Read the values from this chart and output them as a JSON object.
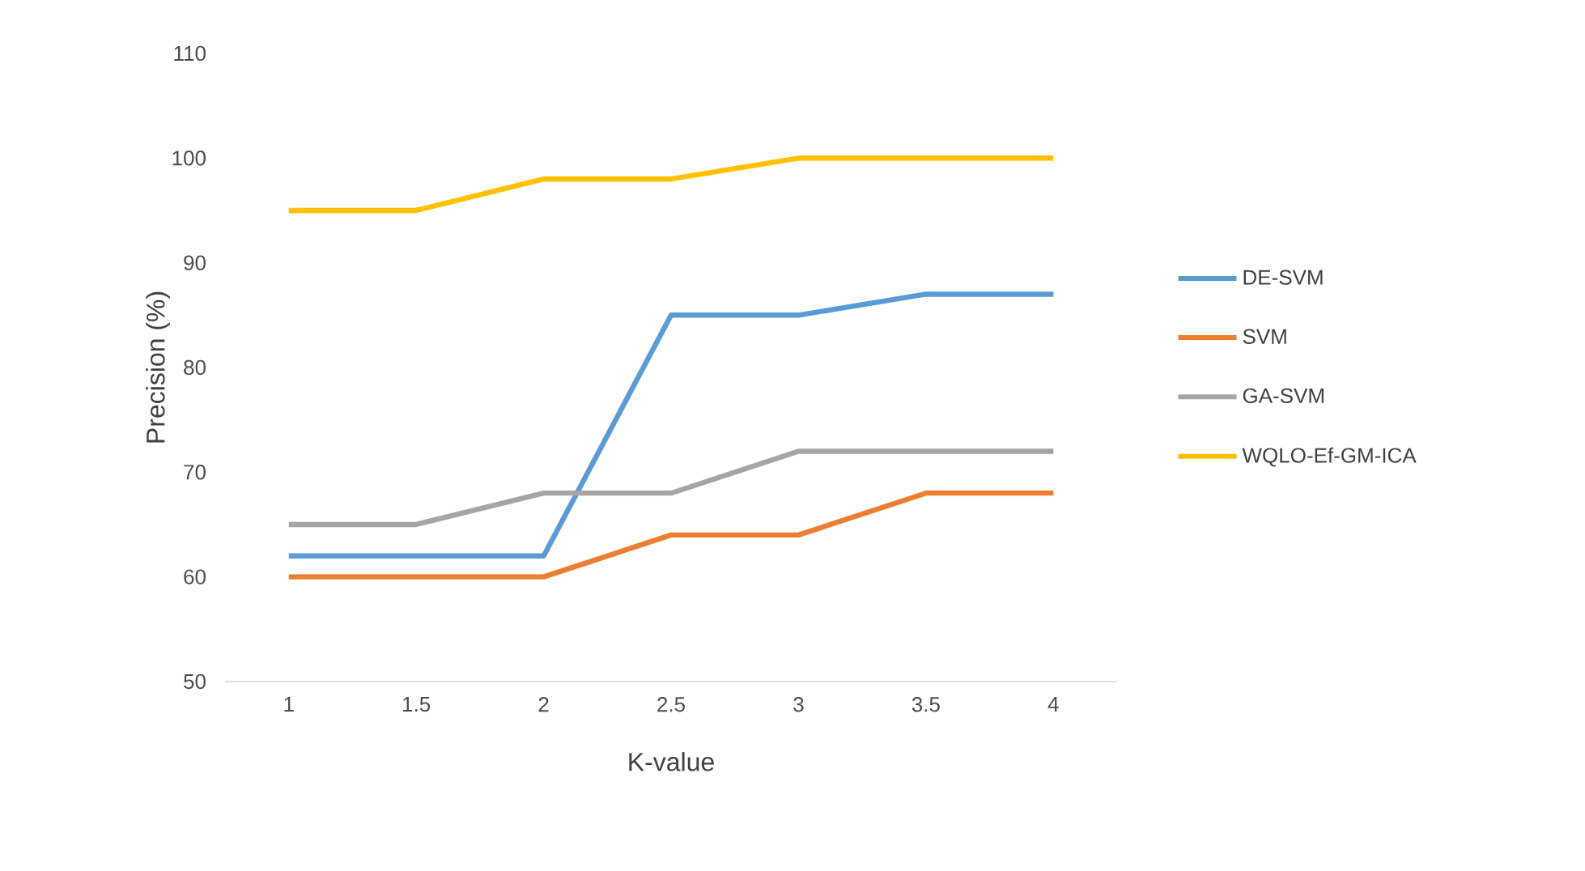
{
  "chart_data": {
    "type": "line",
    "xlabel": "K-value",
    "ylabel": "Precision (%)",
    "categories": [
      "1",
      "1.5",
      "2",
      "2.5",
      "3",
      "3.5",
      "4"
    ],
    "ylim": [
      50,
      110
    ],
    "yticks": [
      50,
      60,
      70,
      80,
      90,
      100,
      110
    ],
    "grid": false,
    "legend": "right",
    "marker": "none",
    "line_style": "solid",
    "series": [
      {
        "name": "DE-SVM",
        "color": "#5b9bd5",
        "values": [
          62,
          62,
          62,
          85,
          85,
          87,
          87
        ]
      },
      {
        "name": "SVM",
        "color": "#ed7d31",
        "values": [
          60,
          60,
          60,
          64,
          64,
          68,
          68
        ]
      },
      {
        "name": "GA-SVM",
        "color": "#a5a5a5",
        "values": [
          65,
          65,
          68,
          68,
          72,
          72,
          72
        ]
      },
      {
        "name": "WQLO-Ef-GM-ICA",
        "color": "#ffc000",
        "values": [
          95,
          95,
          98,
          98,
          100,
          100,
          100
        ]
      }
    ]
  }
}
